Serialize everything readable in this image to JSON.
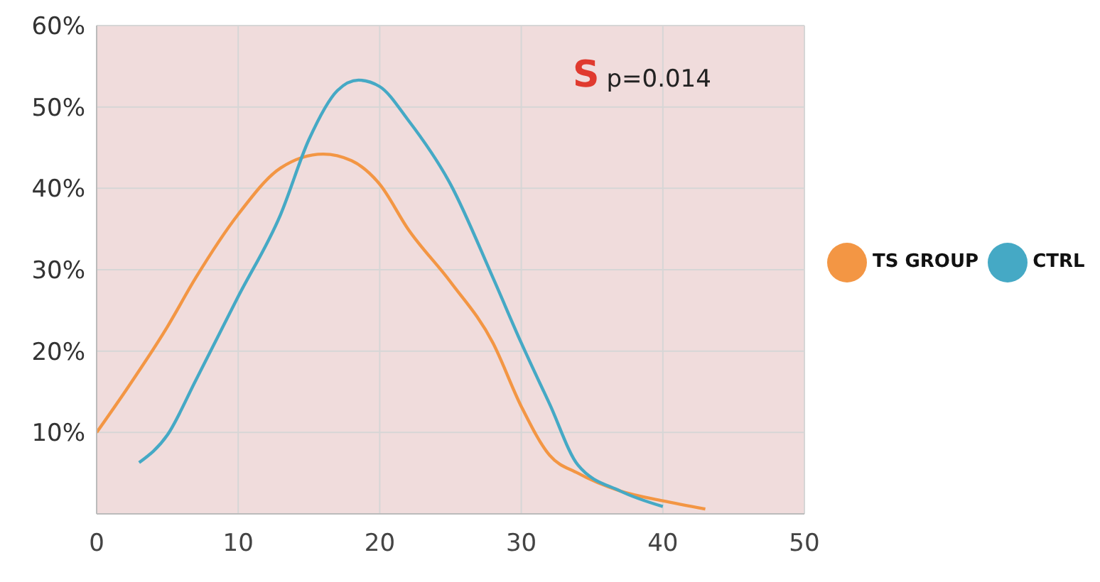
{
  "chart_data": {
    "type": "line",
    "xlim": [
      0,
      50
    ],
    "xticks": [
      0,
      10,
      20,
      30,
      40,
      50
    ],
    "ylim": [
      0,
      60
    ],
    "yticks": [
      {
        "value": 10,
        "label": "10%"
      },
      {
        "value": 20,
        "label": "20%"
      },
      {
        "value": 30,
        "label": "30%"
      },
      {
        "value": 40,
        "label": "40%"
      },
      {
        "value": 50,
        "label": "50%"
      },
      {
        "value": 60,
        "label": "60%"
      }
    ],
    "grid": true,
    "legend": "right",
    "marker": "none",
    "line_style": "solid",
    "annotations": [
      "S",
      "p=0.014"
    ],
    "series": [
      {
        "name": "TS GROUP",
        "color": "#f39644",
        "x": [
          0,
          2,
          5,
          7,
          10,
          13,
          16,
          18,
          20,
          22,
          25,
          28,
          30,
          32,
          34,
          37,
          40,
          43
        ],
        "values": [
          10,
          15,
          23,
          29,
          36.8,
          42.5,
          44.2,
          43.4,
          40.5,
          35,
          28.5,
          21,
          13.2,
          7.2,
          5,
          2.8,
          1.6,
          0.6
        ]
      },
      {
        "name": "CTRL",
        "color": "#45a9c5",
        "x": [
          3,
          5,
          7,
          10,
          13,
          15,
          17,
          18.5,
          20,
          22,
          25,
          28,
          30,
          32,
          34,
          37,
          40
        ],
        "values": [
          6.3,
          9.7,
          16.4,
          26.7,
          36.8,
          46,
          52,
          53.3,
          52.5,
          48.4,
          40.5,
          29,
          21,
          13.5,
          6,
          2.8,
          0.9
        ]
      }
    ]
  }
}
